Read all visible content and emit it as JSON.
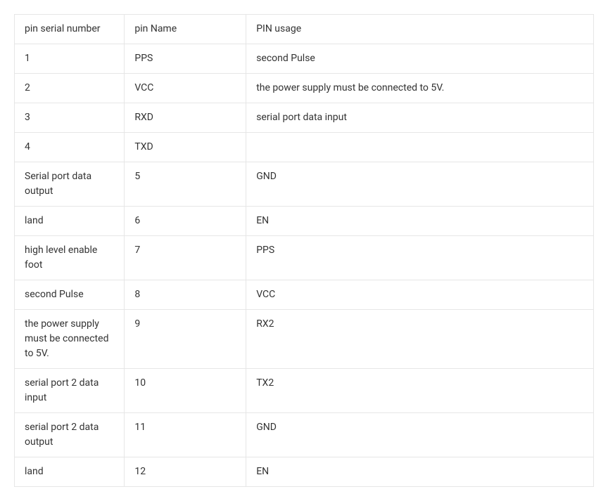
{
  "table": {
    "columns": [
      {
        "label": "pin serial number"
      },
      {
        "label": "pin Name"
      },
      {
        "label": "PIN usage"
      }
    ],
    "rows": [
      [
        "1",
        "PPS",
        "second Pulse"
      ],
      [
        "2",
        "VCC",
        "the power supply must be connected to 5V."
      ],
      [
        "3",
        "RXD",
        "serial port data input"
      ],
      [
        "4",
        "TXD",
        ""
      ],
      [
        "Serial port data output",
        "5",
        "GND"
      ],
      [
        "land",
        "6",
        "EN"
      ],
      [
        "high level enable foot",
        "7",
        "PPS"
      ],
      [
        "second Pulse",
        "8",
        "VCC"
      ],
      [
        "the power supply must be connected to 5V.",
        "9",
        "RX2"
      ],
      [
        "serial port 2 data input",
        "10",
        "TX2"
      ],
      [
        "serial port 2 data output",
        "11",
        "GND"
      ],
      [
        "land",
        "12",
        "EN"
      ]
    ],
    "border_color": "#e6e6e6",
    "text_color": "#333333",
    "background_color": "#ffffff",
    "font_size": 14
  }
}
